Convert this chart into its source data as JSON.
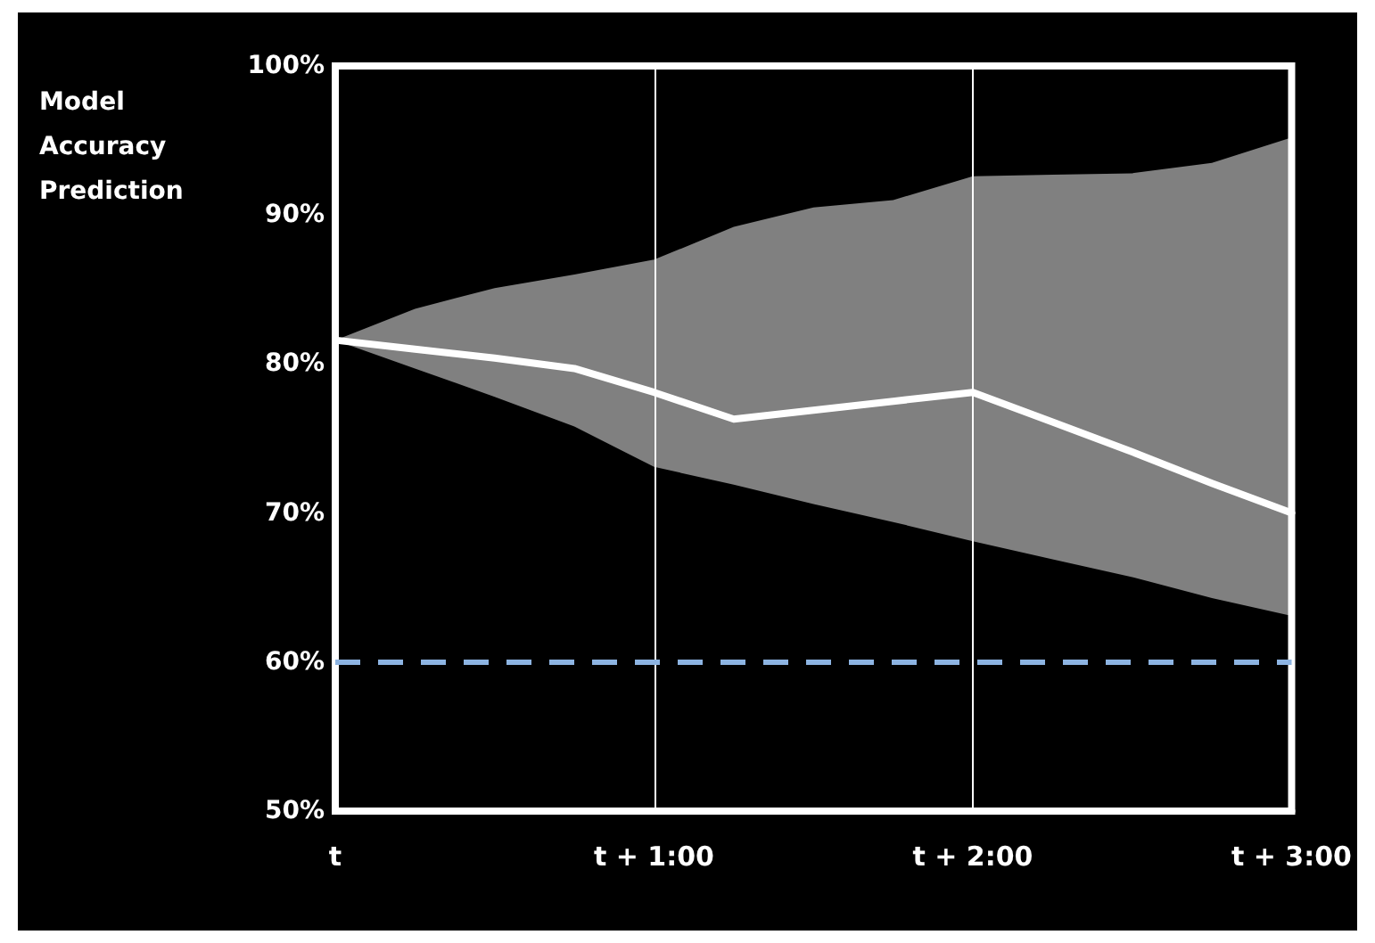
{
  "chart_data": {
    "type": "line",
    "ylabel": "Model Accuracy Prediction",
    "categories": [
      "t",
      null,
      null,
      null,
      "t + 1:00",
      null,
      null,
      null,
      "t + 2:00",
      null,
      null,
      null,
      "t + 3:00"
    ],
    "ylim": [
      50,
      100
    ],
    "yticks": [
      {
        "value": 50,
        "label": "50%"
      },
      {
        "value": 60,
        "label": "60%"
      },
      {
        "value": 70,
        "label": "70%"
      },
      {
        "value": 80,
        "label": "80%"
      },
      {
        "value": 90,
        "label": "90%"
      },
      {
        "value": 100,
        "label": "100%"
      }
    ],
    "grid": "x",
    "series": [
      {
        "color": "#ffffff",
        "values": [
          81.6,
          81.0,
          80.4,
          79.7,
          78.1,
          76.3,
          76.9,
          77.5,
          78.1,
          76.1,
          74.1,
          72.0,
          70.0
        ],
        "lower": [
          81.6,
          79.7,
          77.8,
          75.8,
          73.1,
          71.9,
          70.6,
          69.4,
          68.1,
          66.9,
          65.7,
          64.3,
          63.1
        ],
        "upper": [
          81.6,
          83.7,
          85.1,
          86.0,
          87.0,
          89.2,
          90.5,
          91.0,
          92.6,
          92.7,
          92.8,
          93.5,
          95.2
        ]
      }
    ],
    "ref_lines": [
      {
        "axis": "y",
        "value": 60,
        "color": "#8db4e2",
        "line_style": "dashed"
      }
    ],
    "marker": "none",
    "line_style": "solid"
  }
}
